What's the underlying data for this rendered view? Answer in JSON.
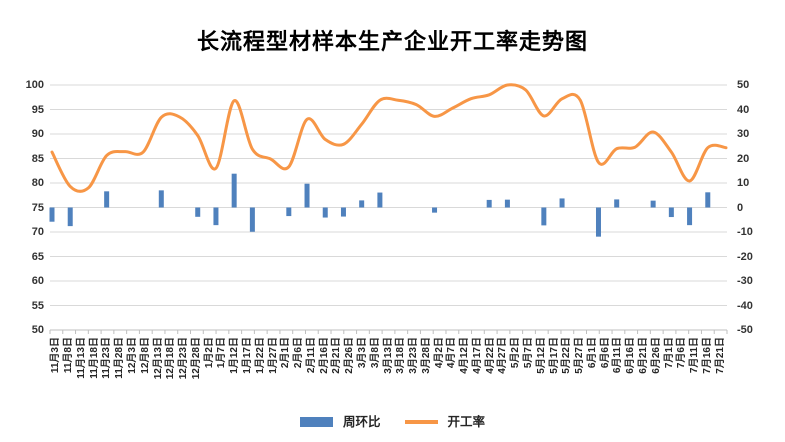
{
  "title": "长流程型材样本生产企业开工率走势图",
  "legend": {
    "bar_label": "周环比",
    "line_label": "开工率"
  },
  "colors": {
    "bar": "#4F81BD",
    "line": "#F79646",
    "gridline": "#D9D9D9",
    "axis_line": "#BFBFBF",
    "label_text": "#262626"
  },
  "chart_data": {
    "type": "combo",
    "title": "长流程型材样本生产企业开工率走势图",
    "grid": true,
    "legend_position": "bottom",
    "x_axis": {
      "type": "date",
      "tick_labels": [
        "11月3日",
        "11月8日",
        "11月13日",
        "11月18日",
        "11月23日",
        "11月28日",
        "12月3日",
        "12月8日",
        "12月13日",
        "12月18日",
        "12月23日",
        "12月28日",
        "1月2日",
        "1月7日",
        "1月12日",
        "1月17日",
        "1月22日",
        "1月27日",
        "2月1日",
        "2月6日",
        "2月11日",
        "2月16日",
        "2月21日",
        "2月26日",
        "3月3日",
        "3月8日",
        "3月13日",
        "3月18日",
        "3月23日",
        "3月28日",
        "4月2日",
        "4月7日",
        "4月12日",
        "4月17日",
        "4月22日",
        "4月27日",
        "5月2日",
        "5月7日",
        "5月12日",
        "5月17日",
        "5月22日",
        "5月27日",
        "6月1日",
        "6月6日",
        "6月11日",
        "6月16日",
        "6月21日",
        "6月26日",
        "7月1日",
        "7月6日",
        "7月11日",
        "7月16日",
        "7月21日"
      ]
    },
    "left_axis": {
      "min": 50,
      "max": 100,
      "step": 5,
      "tick_labels": [
        "100",
        "95",
        "90",
        "85",
        "80",
        "75",
        "70",
        "65",
        "60",
        "55",
        "50"
      ]
    },
    "right_axis": {
      "min": -50,
      "max": 50,
      "step": 10,
      "tick_labels": [
        "50",
        "40",
        "30",
        "20",
        "10",
        "0",
        "-10",
        "-20",
        "-30",
        "-40",
        "-50"
      ]
    },
    "estimated_point_dates": [
      "11月3日",
      "11月10日",
      "11月17日",
      "11月24日",
      "12月1日",
      "12月8日",
      "12月15日",
      "12月22日",
      "12月29日",
      "1月5日",
      "1月12日",
      "1月19日",
      "1月26日",
      "2月2日",
      "2月9日",
      "2月16日",
      "2月23日",
      "3月2日",
      "3月9日",
      "3月16日",
      "3月23日",
      "3月30日",
      "4月6日",
      "4月13日",
      "4月20日",
      "4月27日",
      "5月4日",
      "5月11日",
      "5月18日",
      "5月25日",
      "6月1日",
      "6月8日",
      "6月15日",
      "6月22日",
      "6月29日",
      "7月6日",
      "7月13日",
      "7月20日"
    ],
    "series": [
      {
        "name": "周环比",
        "type": "bar",
        "axis": "right",
        "color": "#4F81BD",
        "values": [
          -5.8,
          -7.6,
          0,
          6.6,
          0,
          0,
          7.0,
          0,
          -3.8,
          -7.2,
          13.8,
          -9.9,
          0,
          -3.5,
          9.7,
          -4.1,
          -3.7,
          2.9,
          6.1,
          0,
          0,
          -2.1,
          0,
          0,
          3.1,
          3.2,
          0,
          -7.3,
          3.7,
          0,
          -11.9,
          3.3,
          0,
          2.8,
          -3.9,
          -7.2,
          6.2,
          0
        ]
      },
      {
        "name": "开工率",
        "type": "line",
        "axis": "left",
        "color": "#F79646",
        "smooth": true,
        "values": [
          86.3,
          79.3,
          79.0,
          85.6,
          86.4,
          86.3,
          93.4,
          93.5,
          89.7,
          83.0,
          96.8,
          86.9,
          84.9,
          83.3,
          93.0,
          88.9,
          87.9,
          92.0,
          96.9,
          96.9,
          96.0,
          93.6,
          95.3,
          97.2,
          98.0,
          100.0,
          99.0,
          93.7,
          97.2,
          96.9,
          84.2,
          87.0,
          87.3,
          90.4,
          86.3,
          80.4,
          87.2,
          87.2
        ]
      }
    ]
  }
}
